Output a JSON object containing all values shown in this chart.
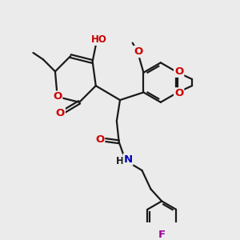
{
  "bg_color": "#ebebeb",
  "bond_color": "#1a1a1a",
  "bond_width": 1.6,
  "atom_colors": {
    "O": "#cc0000",
    "N": "#0000bb",
    "F": "#990099",
    "C": "#1a1a1a"
  },
  "font_size_atom": 9.5,
  "font_size_small": 8.0,
  "figsize": [
    3.0,
    3.0
  ],
  "dpi": 100
}
